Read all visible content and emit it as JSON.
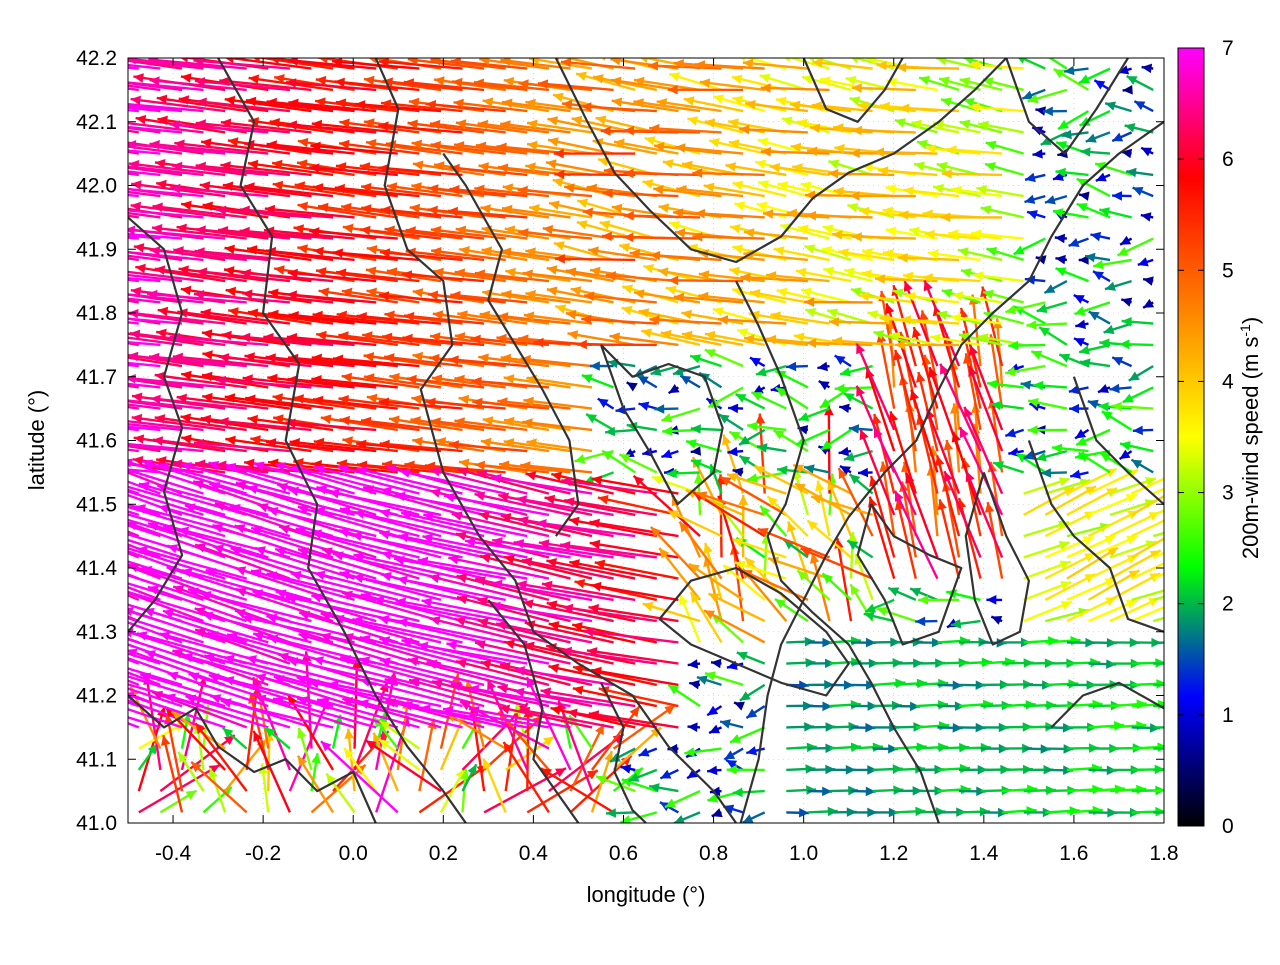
{
  "chart_data": {
    "type": "vector_field",
    "xlabel": "longitude (°)",
    "ylabel": "latitude (°)",
    "xlim": [
      -0.5,
      1.8
    ],
    "ylim": [
      41.0,
      42.2
    ],
    "xticks": [
      "-0.4",
      "-0.2",
      "0.0",
      "0.2",
      "0.4",
      "0.6",
      "0.8",
      "1.0",
      "1.2",
      "1.4",
      "1.6",
      "1.8"
    ],
    "xtick_values": [
      -0.4,
      -0.2,
      0.0,
      0.2,
      0.4,
      0.6,
      0.8,
      1.0,
      1.2,
      1.4,
      1.6,
      1.8
    ],
    "yticks": [
      "41.0",
      "41.1",
      "41.2",
      "41.3",
      "41.4",
      "41.5",
      "41.6",
      "41.7",
      "41.8",
      "41.9",
      "42.0",
      "42.1",
      "42.2"
    ],
    "ytick_values": [
      41.0,
      41.1,
      41.2,
      41.3,
      41.4,
      41.5,
      41.6,
      41.7,
      41.8,
      41.9,
      42.0,
      42.1,
      42.2
    ],
    "grid": true,
    "colorbar": {
      "label_main": "200m-wind speed (m s",
      "label_sup": "-1",
      "label_end": ")",
      "range": [
        0,
        7
      ],
      "ticks": [
        "0",
        "1",
        "2",
        "3",
        "4",
        "5",
        "6",
        "7"
      ],
      "tick_values": [
        0,
        1,
        2,
        3,
        4,
        5,
        6,
        7
      ],
      "palette": [
        "#000000",
        "#0000ff",
        "#00ff00",
        "#ffff00",
        "#ff8000",
        "#ff0000",
        "#ff00ff"
      ]
    },
    "contour_color": "#333333",
    "contours": [
      [
        [
          0.05,
          42.2
        ],
        [
          0.1,
          42.12
        ],
        [
          0.07,
          42.0
        ],
        [
          0.12,
          41.9
        ],
        [
          0.2,
          41.85
        ],
        [
          0.22,
          41.75
        ],
        [
          0.15,
          41.68
        ],
        [
          0.2,
          41.55
        ],
        [
          0.28,
          41.45
        ],
        [
          0.36,
          41.38
        ],
        [
          0.4,
          41.3
        ],
        [
          0.5,
          41.25
        ],
        [
          0.62,
          41.2
        ],
        [
          0.7,
          41.12
        ],
        [
          0.8,
          41.05
        ],
        [
          0.85,
          41.0
        ]
      ],
      [
        [
          -0.3,
          42.2
        ],
        [
          -0.22,
          42.1
        ],
        [
          -0.25,
          42.0
        ],
        [
          -0.18,
          41.92
        ],
        [
          -0.2,
          41.8
        ],
        [
          -0.12,
          41.72
        ],
        [
          -0.15,
          41.6
        ],
        [
          -0.08,
          41.5
        ],
        [
          -0.1,
          41.4
        ],
        [
          -0.02,
          41.3
        ],
        [
          0.05,
          41.2
        ],
        [
          0.12,
          41.12
        ],
        [
          0.2,
          41.05
        ],
        [
          0.25,
          41.0
        ]
      ],
      [
        [
          0.2,
          42.05
        ],
        [
          0.25,
          42.0
        ],
        [
          0.33,
          41.9
        ],
        [
          0.3,
          41.82
        ],
        [
          0.36,
          41.75
        ],
        [
          0.42,
          41.68
        ],
        [
          0.48,
          41.6
        ],
        [
          0.5,
          41.5
        ],
        [
          0.45,
          41.45
        ]
      ],
      [
        [
          0.45,
          42.2
        ],
        [
          0.52,
          42.1
        ],
        [
          0.58,
          42.02
        ],
        [
          0.66,
          41.96
        ],
        [
          0.75,
          41.9
        ],
        [
          0.85,
          41.88
        ],
        [
          0.95,
          41.92
        ],
        [
          1.02,
          41.98
        ],
        [
          1.1,
          42.02
        ],
        [
          1.2,
          42.05
        ],
        [
          1.3,
          42.1
        ],
        [
          1.38,
          42.15
        ],
        [
          1.45,
          42.2
        ]
      ],
      [
        [
          0.55,
          41.75
        ],
        [
          0.62,
          41.7
        ],
        [
          0.7,
          41.72
        ],
        [
          0.78,
          41.7
        ],
        [
          0.82,
          41.62
        ],
        [
          0.8,
          41.55
        ],
        [
          0.72,
          41.5
        ],
        [
          0.66,
          41.58
        ],
        [
          0.6,
          41.65
        ],
        [
          0.55,
          41.75
        ]
      ],
      [
        [
          0.85,
          41.85
        ],
        [
          0.9,
          41.78
        ],
        [
          0.95,
          41.7
        ],
        [
          1.0,
          41.6
        ],
        [
          0.96,
          41.5
        ],
        [
          0.92,
          41.45
        ],
        [
          0.95,
          41.38
        ],
        [
          1.02,
          41.33
        ],
        [
          1.1,
          41.28
        ],
        [
          1.15,
          41.22
        ],
        [
          1.2,
          41.15
        ],
        [
          1.26,
          41.08
        ],
        [
          1.3,
          41.0
        ]
      ],
      [
        [
          0.86,
          41.0
        ],
        [
          0.9,
          41.1
        ],
        [
          0.92,
          41.2
        ],
        [
          0.95,
          41.28
        ],
        [
          1.0,
          41.35
        ],
        [
          1.05,
          41.42
        ],
        [
          1.1,
          41.48
        ],
        [
          1.18,
          41.55
        ],
        [
          1.25,
          41.6
        ],
        [
          1.3,
          41.68
        ],
        [
          1.35,
          41.75
        ],
        [
          1.42,
          41.8
        ],
        [
          1.5,
          41.85
        ],
        [
          1.55,
          41.92
        ],
        [
          1.62,
          42.0
        ],
        [
          1.7,
          42.05
        ],
        [
          1.8,
          42.1
        ]
      ],
      [
        [
          1.45,
          42.2
        ],
        [
          1.5,
          42.1
        ],
        [
          1.58,
          42.05
        ],
        [
          1.65,
          42.12
        ],
        [
          1.72,
          42.2
        ]
      ],
      [
        [
          1.5,
          41.6
        ],
        [
          1.55,
          41.5
        ],
        [
          1.6,
          41.45
        ],
        [
          1.68,
          41.4
        ],
        [
          1.72,
          41.32
        ],
        [
          1.8,
          41.3
        ]
      ],
      [
        [
          1.4,
          41.55
        ],
        [
          1.45,
          41.45
        ],
        [
          1.5,
          41.38
        ],
        [
          1.48,
          41.3
        ],
        [
          1.42,
          41.28
        ],
        [
          1.38,
          41.35
        ],
        [
          1.36,
          41.45
        ],
        [
          1.4,
          41.55
        ]
      ],
      [
        [
          0.68,
          41.32
        ],
        [
          0.75,
          41.38
        ],
        [
          0.85,
          41.4
        ],
        [
          0.95,
          41.36
        ],
        [
          1.05,
          41.3
        ],
        [
          1.1,
          41.25
        ],
        [
          1.05,
          41.2
        ],
        [
          0.95,
          41.22
        ],
        [
          0.85,
          41.25
        ],
        [
          0.75,
          41.28
        ],
        [
          0.68,
          41.32
        ]
      ],
      [
        [
          -0.5,
          41.2
        ],
        [
          -0.42,
          41.15
        ],
        [
          -0.35,
          41.18
        ],
        [
          -0.3,
          41.12
        ],
        [
          -0.22,
          41.08
        ],
        [
          -0.15,
          41.1
        ],
        [
          -0.08,
          41.05
        ],
        [
          0.0,
          41.08
        ],
        [
          0.05,
          41.0
        ]
      ],
      [
        [
          -0.5,
          41.95
        ],
        [
          -0.42,
          41.9
        ],
        [
          -0.38,
          41.8
        ],
        [
          -0.42,
          41.7
        ],
        [
          -0.38,
          41.62
        ],
        [
          -0.42,
          41.52
        ],
        [
          -0.38,
          41.42
        ],
        [
          -0.44,
          41.35
        ],
        [
          -0.5,
          41.3
        ]
      ],
      [
        [
          0.3,
          41.35
        ],
        [
          0.38,
          41.28
        ],
        [
          0.42,
          41.18
        ],
        [
          0.4,
          41.1
        ],
        [
          0.45,
          41.05
        ],
        [
          0.5,
          41.0
        ]
      ],
      [
        [
          0.55,
          41.22
        ],
        [
          0.6,
          41.15
        ],
        [
          0.58,
          41.08
        ],
        [
          0.62,
          41.02
        ],
        [
          0.65,
          41.0
        ]
      ],
      [
        [
          1.15,
          41.5
        ],
        [
          1.2,
          41.45
        ],
        [
          1.28,
          41.42
        ],
        [
          1.35,
          41.4
        ],
        [
          1.3,
          41.3
        ],
        [
          1.22,
          41.28
        ],
        [
          1.18,
          41.35
        ],
        [
          1.12,
          41.42
        ],
        [
          1.15,
          41.5
        ]
      ],
      [
        [
          1.6,
          41.7
        ],
        [
          1.65,
          41.6
        ],
        [
          1.72,
          41.55
        ],
        [
          1.8,
          41.5
        ]
      ],
      [
        [
          1.55,
          41.15
        ],
        [
          1.62,
          41.2
        ],
        [
          1.7,
          41.22
        ],
        [
          1.8,
          41.18
        ]
      ],
      [
        [
          1.0,
          42.2
        ],
        [
          1.05,
          42.12
        ],
        [
          1.12,
          42.1
        ],
        [
          1.18,
          42.15
        ],
        [
          1.22,
          42.2
        ]
      ]
    ]
  }
}
